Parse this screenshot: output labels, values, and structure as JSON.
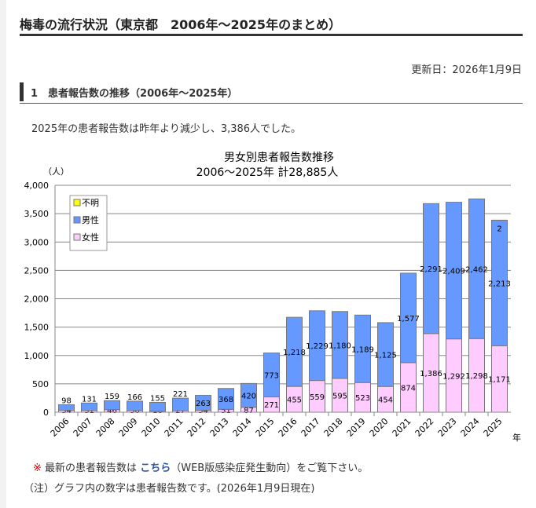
{
  "header": {
    "title": "梅毒の流行状況（東京都　2006年～2025年のまとめ）",
    "updated": "更新日：2026年1月9日"
  },
  "section": {
    "title": "1　患者報告数の推移（2006年～2025年）",
    "lead": "2025年の患者報告数は昨年より減少し、3,386人でした。"
  },
  "notes": {
    "prefix": "※",
    "text1": "最新の患者報告数は",
    "link": "こちら",
    "text2": "（WEB版感染症発生動向）をご覧下さい。",
    "note": "（注）グラフ内の数字は患者報告数です。(2026年1月9日現在)"
  },
  "chart_data": {
    "type": "bar",
    "stacked": true,
    "title": "男女別患者報告数推移",
    "subtitle": "2006～2025年  計28,885人",
    "ylabel": "（人）",
    "xlabel": "年",
    "ylim": [
      0,
      4000
    ],
    "yticks": [
      "0",
      "500",
      "1,000",
      "1,500",
      "2,000",
      "2,500",
      "3,000",
      "3,500",
      "4,000"
    ],
    "categories": [
      "2006",
      "2007",
      "2008",
      "2009",
      "2010",
      "2011",
      "2012",
      "2013",
      "2014",
      "2015",
      "2016",
      "2017",
      "2018",
      "2019",
      "2020",
      "2021",
      "2022",
      "2023",
      "2024",
      "2025"
    ],
    "series": [
      {
        "name": "女性",
        "color": "#ffccff",
        "values": [
          34,
          31,
          46,
          30,
          18,
          27,
          34,
          51,
          87,
          271,
          455,
          559,
          595,
          523,
          454,
          874,
          1386,
          1292,
          1298,
          1171
        ]
      },
      {
        "name": "男性",
        "color": "#6699ff",
        "values": [
          98,
          131,
          159,
          166,
          155,
          221,
          263,
          368,
          420,
          773,
          1218,
          1229,
          1180,
          1189,
          1125,
          1577,
          2291,
          2409,
          2462,
          2213
        ]
      },
      {
        "name": "不明",
        "color": "#ffff00",
        "values": [
          0,
          0,
          0,
          0,
          0,
          0,
          0,
          0,
          0,
          0,
          0,
          0,
          0,
          0,
          0,
          0,
          0,
          0,
          0,
          2
        ]
      }
    ],
    "legend": "top-left"
  }
}
